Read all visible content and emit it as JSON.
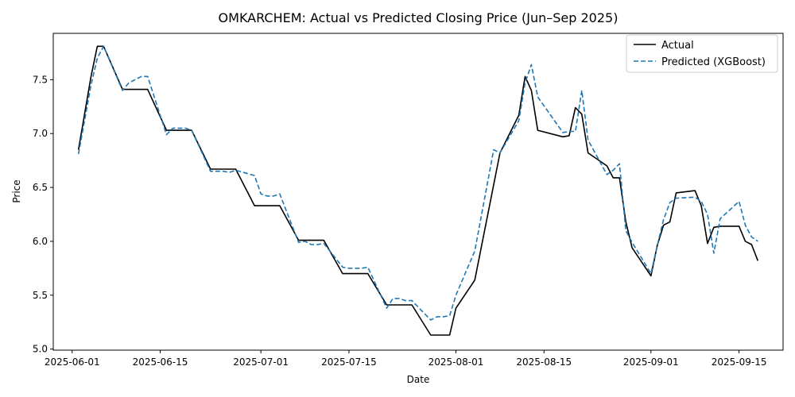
{
  "chart_data": {
    "type": "line",
    "title": "OMKARCHEM: Actual vs Predicted Closing Price (Jun–Sep 2025)",
    "xlabel": "Date",
    "ylabel": "Price",
    "xlim": [
      "2025-05-29",
      "2025-09-22"
    ],
    "ylim": [
      4.99,
      7.93
    ],
    "x_ticks": [
      "2025-06-01",
      "2025-06-15",
      "2025-07-01",
      "2025-07-15",
      "2025-08-01",
      "2025-08-15",
      "2025-09-01",
      "2025-09-15"
    ],
    "y_ticks": [
      "5.0",
      "5.5",
      "6.0",
      "6.5",
      "7.0",
      "7.5"
    ],
    "grid": false,
    "legend_position": "top-right",
    "series": [
      {
        "name": "Actual",
        "color": "#000000",
        "style": "solid",
        "points": [
          [
            "2025-06-02",
            6.85
          ],
          [
            "2025-06-04",
            7.53
          ],
          [
            "2025-06-05",
            7.81
          ],
          [
            "2025-06-06",
            7.81
          ],
          [
            "2025-06-09",
            7.41
          ],
          [
            "2025-06-10",
            7.41
          ],
          [
            "2025-06-11",
            7.41
          ],
          [
            "2025-06-12",
            7.41
          ],
          [
            "2025-06-13",
            7.41
          ],
          [
            "2025-06-16",
            7.03
          ],
          [
            "2025-06-17",
            7.03
          ],
          [
            "2025-06-18",
            7.03
          ],
          [
            "2025-06-19",
            7.03
          ],
          [
            "2025-06-20",
            7.03
          ],
          [
            "2025-06-23",
            6.67
          ],
          [
            "2025-06-24",
            6.67
          ],
          [
            "2025-06-25",
            6.67
          ],
          [
            "2025-06-26",
            6.67
          ],
          [
            "2025-06-27",
            6.67
          ],
          [
            "2025-06-30",
            6.33
          ],
          [
            "2025-07-01",
            6.33
          ],
          [
            "2025-07-02",
            6.33
          ],
          [
            "2025-07-03",
            6.33
          ],
          [
            "2025-07-04",
            6.33
          ],
          [
            "2025-07-07",
            6.01
          ],
          [
            "2025-07-08",
            6.01
          ],
          [
            "2025-07-09",
            6.01
          ],
          [
            "2025-07-10",
            6.01
          ],
          [
            "2025-07-11",
            6.01
          ],
          [
            "2025-07-14",
            5.7
          ],
          [
            "2025-07-15",
            5.7
          ],
          [
            "2025-07-16",
            5.7
          ],
          [
            "2025-07-17",
            5.7
          ],
          [
            "2025-07-18",
            5.7
          ],
          [
            "2025-07-21",
            5.41
          ],
          [
            "2025-07-22",
            5.41
          ],
          [
            "2025-07-23",
            5.41
          ],
          [
            "2025-07-24",
            5.41
          ],
          [
            "2025-07-25",
            5.41
          ],
          [
            "2025-07-28",
            5.13
          ],
          [
            "2025-07-29",
            5.13
          ],
          [
            "2025-07-30",
            5.13
          ],
          [
            "2025-07-31",
            5.13
          ],
          [
            "2025-08-01",
            5.38
          ],
          [
            "2025-08-04",
            5.64
          ],
          [
            "2025-08-08",
            6.82
          ],
          [
            "2025-08-11",
            7.17
          ],
          [
            "2025-08-12",
            7.53
          ],
          [
            "2025-08-13",
            7.4
          ],
          [
            "2025-08-14",
            7.03
          ],
          [
            "2025-08-18",
            6.97
          ],
          [
            "2025-08-19",
            6.98
          ],
          [
            "2025-08-20",
            7.24
          ],
          [
            "2025-08-21",
            7.18
          ],
          [
            "2025-08-22",
            6.82
          ],
          [
            "2025-08-25",
            6.7
          ],
          [
            "2025-08-26",
            6.59
          ],
          [
            "2025-08-27",
            6.59
          ],
          [
            "2025-08-28",
            6.18
          ],
          [
            "2025-08-29",
            5.94
          ],
          [
            "2025-09-01",
            5.68
          ],
          [
            "2025-09-02",
            5.96
          ],
          [
            "2025-09-03",
            6.15
          ],
          [
            "2025-09-04",
            6.18
          ],
          [
            "2025-09-05",
            6.45
          ],
          [
            "2025-09-08",
            6.47
          ],
          [
            "2025-09-09",
            6.33
          ],
          [
            "2025-09-10",
            5.98
          ],
          [
            "2025-09-11",
            6.13
          ],
          [
            "2025-09-12",
            6.14
          ],
          [
            "2025-09-15",
            6.14
          ],
          [
            "2025-09-16",
            6.0
          ],
          [
            "2025-09-17",
            5.97
          ],
          [
            "2025-09-18",
            5.82
          ]
        ]
      },
      {
        "name": "Predicted (XGBoost)",
        "color": "#1f77b4",
        "style": "dashed",
        "points": [
          [
            "2025-06-02",
            6.81
          ],
          [
            "2025-06-04",
            7.45
          ],
          [
            "2025-06-05",
            7.7
          ],
          [
            "2025-06-06",
            7.81
          ],
          [
            "2025-06-09",
            7.4
          ],
          [
            "2025-06-10",
            7.47
          ],
          [
            "2025-06-11",
            7.5
          ],
          [
            "2025-06-12",
            7.53
          ],
          [
            "2025-06-13",
            7.53
          ],
          [
            "2025-06-16",
            6.99
          ],
          [
            "2025-06-17",
            7.05
          ],
          [
            "2025-06-18",
            7.05
          ],
          [
            "2025-06-19",
            7.05
          ],
          [
            "2025-06-20",
            7.03
          ],
          [
            "2025-06-23",
            6.65
          ],
          [
            "2025-06-24",
            6.65
          ],
          [
            "2025-06-25",
            6.65
          ],
          [
            "2025-06-26",
            6.64
          ],
          [
            "2025-06-27",
            6.66
          ],
          [
            "2025-06-30",
            6.61
          ],
          [
            "2025-07-01",
            6.44
          ],
          [
            "2025-07-02",
            6.42
          ],
          [
            "2025-07-03",
            6.42
          ],
          [
            "2025-07-04",
            6.44
          ],
          [
            "2025-07-07",
            5.99
          ],
          [
            "2025-07-08",
            6.0
          ],
          [
            "2025-07-09",
            5.97
          ],
          [
            "2025-07-10",
            5.97
          ],
          [
            "2025-07-11",
            5.98
          ],
          [
            "2025-07-14",
            5.76
          ],
          [
            "2025-07-15",
            5.75
          ],
          [
            "2025-07-16",
            5.75
          ],
          [
            "2025-07-17",
            5.75
          ],
          [
            "2025-07-18",
            5.76
          ],
          [
            "2025-07-21",
            5.38
          ],
          [
            "2025-07-22",
            5.47
          ],
          [
            "2025-07-23",
            5.47
          ],
          [
            "2025-07-24",
            5.45
          ],
          [
            "2025-07-25",
            5.45
          ],
          [
            "2025-07-28",
            5.27
          ],
          [
            "2025-07-29",
            5.3
          ],
          [
            "2025-07-30",
            5.3
          ],
          [
            "2025-07-31",
            5.31
          ],
          [
            "2025-08-01",
            5.5
          ],
          [
            "2025-08-04",
            5.91
          ],
          [
            "2025-08-07",
            6.85
          ],
          [
            "2025-08-08",
            6.82
          ],
          [
            "2025-08-11",
            7.12
          ],
          [
            "2025-08-12",
            7.47
          ],
          [
            "2025-08-13",
            7.64
          ],
          [
            "2025-08-14",
            7.34
          ],
          [
            "2025-08-18",
            7.01
          ],
          [
            "2025-08-19",
            7.02
          ],
          [
            "2025-08-20",
            7.02
          ],
          [
            "2025-08-21",
            7.4
          ],
          [
            "2025-08-22",
            6.94
          ],
          [
            "2025-08-25",
            6.62
          ],
          [
            "2025-08-26",
            6.66
          ],
          [
            "2025-08-27",
            6.72
          ],
          [
            "2025-08-28",
            6.1
          ],
          [
            "2025-08-29",
            5.99
          ],
          [
            "2025-09-01",
            5.7
          ],
          [
            "2025-09-02",
            5.96
          ],
          [
            "2025-09-03",
            6.2
          ],
          [
            "2025-09-04",
            6.36
          ],
          [
            "2025-09-05",
            6.4
          ],
          [
            "2025-09-08",
            6.41
          ],
          [
            "2025-09-09",
            6.37
          ],
          [
            "2025-09-10",
            6.25
          ],
          [
            "2025-09-11",
            5.89
          ],
          [
            "2025-09-12",
            6.21
          ],
          [
            "2025-09-15",
            6.37
          ],
          [
            "2025-09-16",
            6.15
          ],
          [
            "2025-09-17",
            6.04
          ],
          [
            "2025-09-18",
            6.0
          ]
        ]
      }
    ]
  }
}
